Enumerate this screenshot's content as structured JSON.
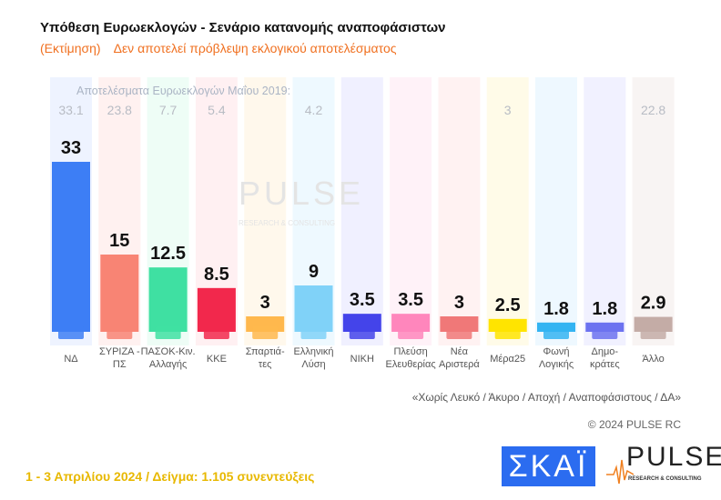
{
  "title": "Υπόθεση Ευρωεκλογών - Σενάριο κατανομής αναποφάσιστων",
  "subtitle_a": "(Εκτίμηση)",
  "subtitle_b": "Δεν αποτελεί πρόβλεψη εκλογικού αποτελέσματος",
  "note": "«Χωρίς Λευκό / Άκυρο / Αποχή / Αναποφάσιστους / ΔΑ»",
  "copyright": "© 2024 PULSE RC",
  "footer": "1 - 3  Απριλίου 2024  /  Δείγμα:  1.105 συνεντεύξεις",
  "logos": {
    "skai": "ΣΚΑΪ",
    "pulse": "PULSE",
    "pulse_sub": "RESEARCH & CONSULTING",
    "watermark": "PULSE",
    "watermark_sub": "RESEARCH & CONSULTING"
  },
  "chart_data": {
    "type": "bar",
    "title": "Υπόθεση Ευρωεκλογών - Σενάριο κατανομής αναποφάσιστων",
    "previous_label": "Αποτελέσματα Ευρωεκλογών Μαΐου 2019:",
    "categories": [
      "ΝΔ",
      "ΣΥΡΙΖΑ - ΠΣ",
      "ΠΑΣΟΚ-Κιν. Αλλαγής",
      "ΚΚΕ",
      "Σπαρτιά- τες",
      "Ελληνική Λύση",
      "ΝΙΚΗ",
      "Πλεύση Ελευθερίας",
      "Νέα Αριστερά",
      "Μέρα25",
      "Φωνή Λογικής",
      "Δημο- κράτες",
      "Άλλο"
    ],
    "values": [
      33,
      15,
      12.5,
      8.5,
      3,
      9,
      3.5,
      3.5,
      3,
      2.5,
      1.8,
      1.8,
      2.9
    ],
    "labels": [
      "33",
      "15",
      "12.5",
      "8.5",
      "3",
      "9",
      "3.5",
      "3.5",
      "3",
      "2.5",
      "1.8",
      "1.8",
      "2.9"
    ],
    "previous_2019": [
      "33.1",
      "23.8",
      "7.7",
      "5.4",
      "",
      "4.2",
      "",
      "",
      "",
      "3",
      "",
      "",
      "22.8"
    ],
    "colors": [
      "#3d7ef5",
      "#f88474",
      "#3fe0a2",
      "#f2284c",
      "#ffb84d",
      "#80d2f8",
      "#4444ea",
      "#ff86bc",
      "#f07878",
      "#ffe400",
      "#34b4f2",
      "#6c72f0",
      "#c4aca6"
    ],
    "bg_colors": [
      "#eef3ff",
      "#fff1f0",
      "#eefdf6",
      "#fff0f2",
      "#fff8ec",
      "#eef9ff",
      "#f0f0ff",
      "#fff2f8",
      "#fff2f2",
      "#fffbe8",
      "#eef8ff",
      "#f1f1ff",
      "#f8f4f3"
    ],
    "ylim": [
      0,
      34
    ]
  }
}
